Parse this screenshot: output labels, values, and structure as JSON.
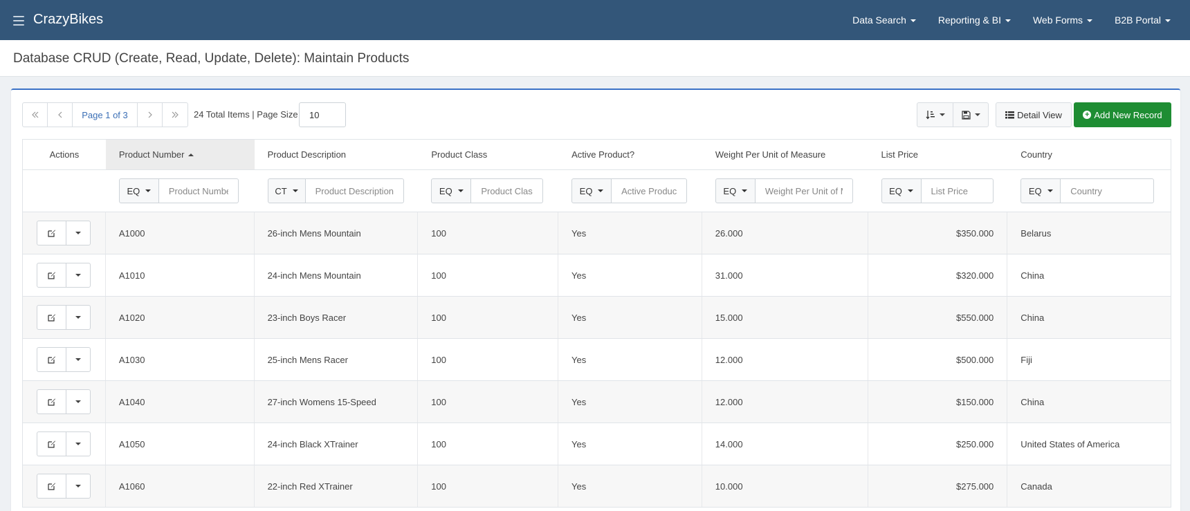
{
  "app": {
    "brand": "CrazyBikes"
  },
  "nav": [
    {
      "label": "Data Search"
    },
    {
      "label": "Reporting & BI"
    },
    {
      "label": "Web Forms"
    },
    {
      "label": "B2B Portal"
    }
  ],
  "page": {
    "title": "Database CRUD (Create, Read, Update, Delete): Maintain Products"
  },
  "pager": {
    "page_label": "Page 1 of 3",
    "totals_label": "24 Total Items | Page Size",
    "page_size": "10"
  },
  "toolbar": {
    "detail_view_label": "Detail View",
    "add_label": "Add New Record"
  },
  "columns": [
    "Actions",
    "Product Number",
    "Product Description",
    "Product Class",
    "Active Product?",
    "Weight Per Unit of Measure",
    "List Price",
    "Country"
  ],
  "filters": [
    {
      "op": "EQ",
      "placeholder": "Product Number"
    },
    {
      "op": "CT",
      "placeholder": "Product Description"
    },
    {
      "op": "EQ",
      "placeholder": "Product Class"
    },
    {
      "op": "EQ",
      "placeholder": "Active Product?"
    },
    {
      "op": "EQ",
      "placeholder": "Weight Per Unit of Measure"
    },
    {
      "op": "EQ",
      "placeholder": "List Price"
    },
    {
      "op": "EQ",
      "placeholder": "Country"
    }
  ],
  "rows": [
    {
      "number": "A1000",
      "description": "26-inch Mens Mountain",
      "class": "100",
      "active": "Yes",
      "weight": "26.000",
      "price": "$350.000",
      "country": "Belarus"
    },
    {
      "number": "A1010",
      "description": "24-inch Mens Mountain",
      "class": "100",
      "active": "Yes",
      "weight": "31.000",
      "price": "$320.000",
      "country": "China"
    },
    {
      "number": "A1020",
      "description": "23-inch Boys Racer",
      "class": "100",
      "active": "Yes",
      "weight": "15.000",
      "price": "$550.000",
      "country": "China"
    },
    {
      "number": "A1030",
      "description": "25-inch Mens Racer",
      "class": "100",
      "active": "Yes",
      "weight": "12.000",
      "price": "$500.000",
      "country": "Fiji"
    },
    {
      "number": "A1040",
      "description": "27-inch Womens 15-Speed",
      "class": "100",
      "active": "Yes",
      "weight": "12.000",
      "price": "$150.000",
      "country": "China"
    },
    {
      "number": "A1050",
      "description": "24-inch Black XTrainer",
      "class": "100",
      "active": "Yes",
      "weight": "14.000",
      "price": "$250.000",
      "country": "United States of America"
    },
    {
      "number": "A1060",
      "description": "22-inch Red XTrainer",
      "class": "100",
      "active": "Yes",
      "weight": "10.000",
      "price": "$275.000",
      "country": "Canada"
    }
  ]
}
